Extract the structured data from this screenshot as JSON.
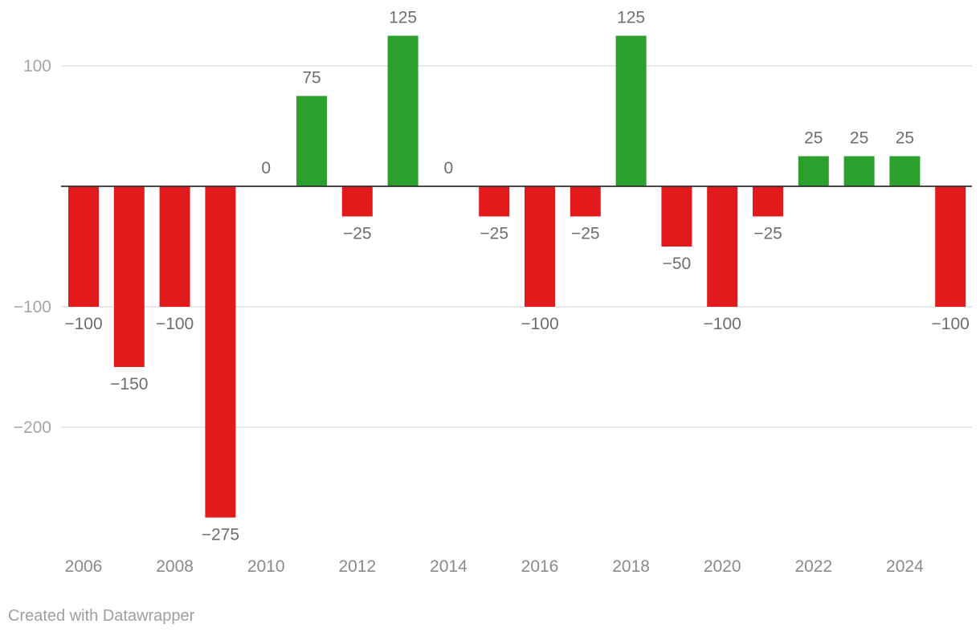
{
  "chart_data": {
    "type": "bar",
    "title": "",
    "xlabel": "",
    "ylabel": "",
    "ylim": [
      -275,
      125
    ],
    "categories": [
      "2006",
      "2007",
      "2008",
      "2009",
      "2010",
      "2011",
      "2012",
      "2013",
      "2014",
      "2015",
      "2016",
      "2017",
      "2018",
      "2019",
      "2020",
      "2021",
      "2022",
      "2023",
      "2024",
      "2025"
    ],
    "values": [
      -100,
      -150,
      -100,
      -275,
      0,
      75,
      -25,
      125,
      0,
      -25,
      -100,
      -25,
      125,
      -50,
      -100,
      -25,
      25,
      25,
      25,
      -100
    ],
    "value_labels": [
      "−100",
      "−150",
      "−100",
      "−275",
      "0",
      "75",
      "−25",
      "125",
      "0",
      "−25",
      "−100",
      "−25",
      "125",
      "−50",
      "−100",
      "−25",
      "25",
      "25",
      "25",
      "−100"
    ],
    "y_ticks": [
      {
        "value": 100,
        "label": "100"
      },
      {
        "value": -100,
        "label": "−100"
      },
      {
        "value": -200,
        "label": "−200"
      }
    ],
    "x_ticks": [
      "2006",
      "2008",
      "2010",
      "2012",
      "2014",
      "2016",
      "2018",
      "2020",
      "2022",
      "2024"
    ],
    "colors": {
      "positive": "#2ca02c",
      "negative": "#e31a1c"
    },
    "grid": true,
    "legend": "none"
  },
  "credit": "Created with Datawrapper"
}
